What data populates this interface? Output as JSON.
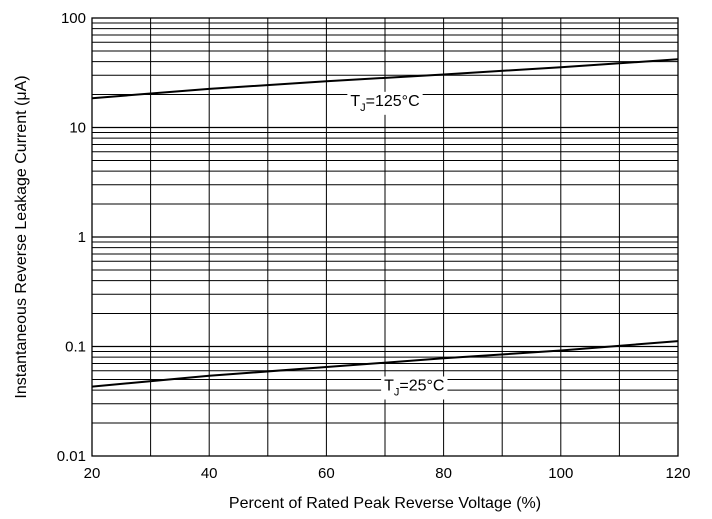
{
  "chart_data": {
    "type": "line",
    "title": "",
    "xlabel": "Percent of Rated Peak Reverse Voltage (%)",
    "ylabel": "Instantaneous Reverse Leakage Current (μA)",
    "x_scale": "linear",
    "y_scale": "log",
    "xlim": [
      20,
      120
    ],
    "ylim": [
      0.01,
      100
    ],
    "x_ticks": [
      20,
      40,
      60,
      80,
      100,
      120
    ],
    "x_tick_labels": [
      "20",
      "40",
      "60",
      "80",
      "100",
      "120"
    ],
    "y_ticks": [
      0.01,
      0.1,
      1,
      10,
      100
    ],
    "y_tick_labels": [
      "0.01",
      "0.1",
      "1",
      "10",
      "100"
    ],
    "grid": true,
    "legend": "none",
    "series": [
      {
        "name": "T_J=125°C",
        "label_main": "T",
        "label_sub": "J",
        "label_rest": "=125°C",
        "color": "#000000",
        "x": [
          20,
          40,
          60,
          80,
          100,
          120
        ],
        "y": [
          18.5,
          22.5,
          26.5,
          30.5,
          35.5,
          42
        ]
      },
      {
        "name": "T_J=25°C",
        "label_main": "T",
        "label_sub": "J",
        "label_rest": "=25°C",
        "color": "#000000",
        "x": [
          20,
          40,
          60,
          80,
          100,
          120
        ],
        "y": [
          0.043,
          0.054,
          0.065,
          0.078,
          0.092,
          0.112
        ]
      }
    ]
  }
}
